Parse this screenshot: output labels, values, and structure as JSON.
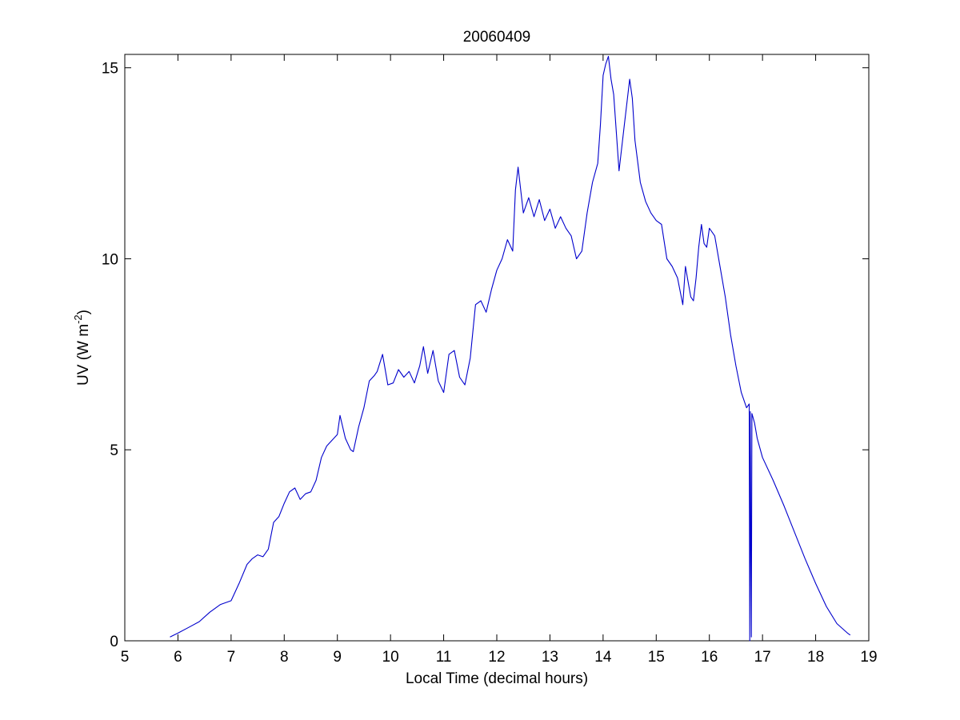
{
  "chart_data": {
    "type": "line",
    "title": "20060409",
    "xlabel": "Local Time (decimal hours)",
    "ylabel": {
      "prefix": "UV (W m",
      "superscript": "-2",
      "suffix": ")"
    },
    "xlim": [
      5,
      19
    ],
    "ylim": [
      0,
      15.35
    ],
    "xticks": [
      5,
      6,
      7,
      8,
      9,
      10,
      11,
      12,
      13,
      14,
      15,
      16,
      17,
      18,
      19
    ],
    "yticks": [
      0,
      5,
      10,
      15
    ],
    "grid": false,
    "colors": {
      "line": "#0000cc",
      "axes": "#000000",
      "background": "#ffffff"
    },
    "series": [
      {
        "x": [
          5.85,
          6.0,
          6.2,
          6.4,
          6.6,
          6.8,
          7.0,
          7.15,
          7.3,
          7.4,
          7.5,
          7.6,
          7.7,
          7.8,
          7.9,
          8.0,
          8.1,
          8.2,
          8.3,
          8.4,
          8.5,
          8.6,
          8.7,
          8.8,
          8.9,
          9.0,
          9.05,
          9.15,
          9.25,
          9.3,
          9.4,
          9.5,
          9.6,
          9.7,
          9.75,
          9.85,
          9.95,
          10.05,
          10.15,
          10.25,
          10.35,
          10.45,
          10.55,
          10.62,
          10.7,
          10.8,
          10.9,
          11.0,
          11.1,
          11.2,
          11.3,
          11.4,
          11.5,
          11.6,
          11.7,
          11.8,
          11.9,
          12.0,
          12.1,
          12.2,
          12.3,
          12.35,
          12.4,
          12.5,
          12.6,
          12.7,
          12.8,
          12.9,
          13.0,
          13.1,
          13.2,
          13.3,
          13.4,
          13.5,
          13.6,
          13.7,
          13.8,
          13.9,
          13.95,
          14.0,
          14.05,
          14.1,
          14.15,
          14.2,
          14.3,
          14.4,
          14.5,
          14.55,
          14.6,
          14.7,
          14.8,
          14.9,
          15.0,
          15.1,
          15.2,
          15.3,
          15.4,
          15.5,
          15.55,
          15.6,
          15.65,
          15.7,
          15.75,
          15.8,
          15.85,
          15.9,
          15.95,
          16.0,
          16.1,
          16.2,
          16.3,
          16.4,
          16.5,
          16.6,
          16.7,
          16.75,
          16.76,
          16.77,
          16.78,
          16.79,
          16.8,
          16.85,
          16.9,
          17.0,
          17.2,
          17.4,
          17.6,
          17.8,
          18.0,
          18.2,
          18.4,
          18.6,
          18.65
        ],
        "y": [
          0.1,
          0.2,
          0.35,
          0.5,
          0.75,
          0.95,
          1.05,
          1.5,
          2.0,
          2.15,
          2.25,
          2.2,
          2.4,
          3.1,
          3.25,
          3.6,
          3.9,
          4.0,
          3.7,
          3.85,
          3.9,
          4.2,
          4.8,
          5.1,
          5.25,
          5.4,
          5.9,
          5.3,
          5.0,
          4.95,
          5.6,
          6.1,
          6.8,
          6.95,
          7.05,
          7.5,
          6.7,
          6.75,
          7.1,
          6.9,
          7.05,
          6.75,
          7.2,
          7.7,
          7.0,
          7.6,
          6.8,
          6.5,
          7.5,
          7.6,
          6.9,
          6.7,
          7.4,
          8.8,
          8.9,
          8.6,
          9.2,
          9.7,
          10.0,
          10.5,
          10.2,
          11.8,
          12.4,
          11.2,
          11.6,
          11.1,
          11.55,
          11.0,
          11.3,
          10.8,
          11.1,
          10.8,
          10.6,
          10.0,
          10.2,
          11.2,
          12.0,
          12.5,
          13.5,
          14.8,
          15.1,
          15.3,
          14.7,
          14.3,
          12.3,
          13.5,
          14.7,
          14.2,
          13.1,
          12.0,
          11.5,
          11.2,
          11.0,
          10.9,
          10.0,
          9.8,
          9.5,
          8.8,
          9.8,
          9.4,
          9.0,
          8.9,
          9.5,
          10.3,
          10.9,
          10.4,
          10.3,
          10.8,
          10.6,
          9.8,
          9.0,
          8.0,
          7.2,
          6.5,
          6.1,
          6.2,
          0.0,
          6.0,
          2.8,
          0.1,
          5.95,
          5.7,
          5.3,
          4.8,
          4.2,
          3.55,
          2.85,
          2.15,
          1.5,
          0.9,
          0.45,
          0.2,
          0.15
        ]
      }
    ]
  }
}
